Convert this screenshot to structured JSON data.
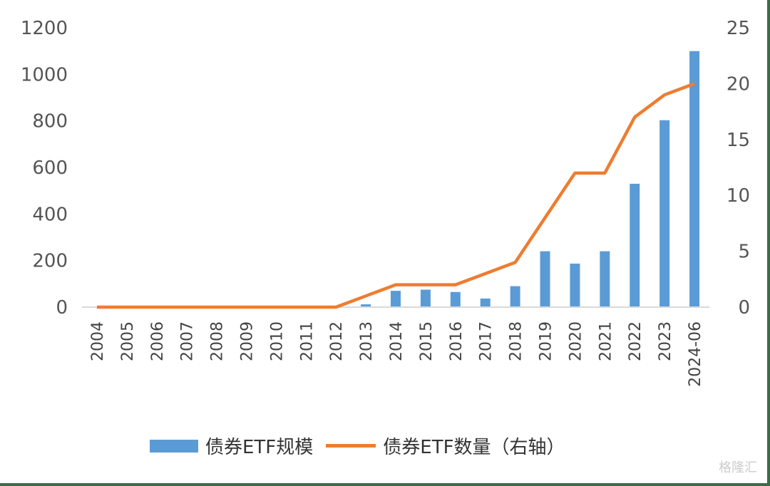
{
  "chart_data": {
    "type": "bar+line",
    "title": "",
    "categories": [
      "2004",
      "2005",
      "2006",
      "2007",
      "2008",
      "2009",
      "2010",
      "2011",
      "2012",
      "2013",
      "2014",
      "2015",
      "2016",
      "2017",
      "2018",
      "2019",
      "2020",
      "2021",
      "2022",
      "2023",
      "2024-06"
    ],
    "series": [
      {
        "name": "债券ETF规模",
        "type": "bar",
        "axis": "left",
        "color": "#5b9bd5",
        "values": [
          0,
          0,
          0,
          0,
          0,
          0,
          0,
          0,
          0,
          12,
          70,
          75,
          65,
          37,
          90,
          240,
          187,
          240,
          530,
          803,
          1100
        ]
      },
      {
        "name": "债券ETF数量（右轴）",
        "type": "line",
        "axis": "right",
        "color": "#ed7d31",
        "values": [
          0,
          0,
          0,
          0,
          0,
          0,
          0,
          0,
          0,
          1,
          2,
          2,
          2,
          3,
          4,
          8,
          12,
          12,
          17,
          19,
          20
        ]
      }
    ],
    "y_left": {
      "ticks": [
        0,
        200,
        400,
        600,
        800,
        1000,
        1200
      ],
      "ylim": [
        0,
        1200
      ]
    },
    "y_right": {
      "ticks": [
        0,
        5,
        10,
        15,
        20,
        25
      ],
      "ylim": [
        0,
        25
      ]
    },
    "grid": false,
    "legend_position": "bottom"
  },
  "legend": {
    "bar_label": "债券ETF规模",
    "line_label": "债券ETF数量（右轴）"
  },
  "watermark": "格隆汇"
}
